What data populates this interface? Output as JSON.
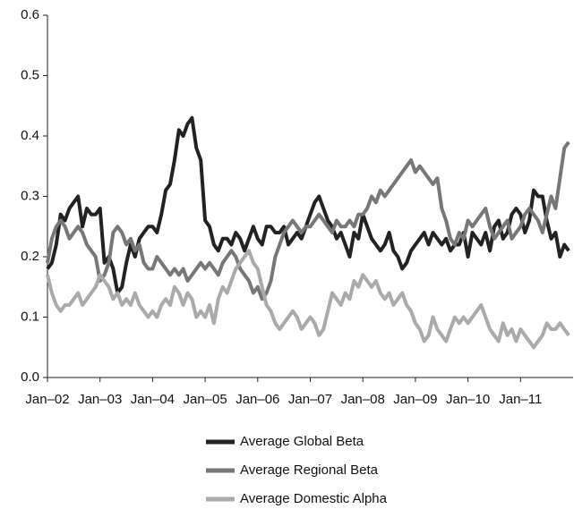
{
  "chart_data": {
    "type": "line",
    "categories": [
      "Jan–02",
      null,
      null,
      null,
      null,
      null,
      null,
      null,
      null,
      null,
      null,
      null,
      "Jan–03",
      null,
      null,
      null,
      null,
      null,
      null,
      null,
      null,
      null,
      null,
      null,
      "Jan–04",
      null,
      null,
      null,
      null,
      null,
      null,
      null,
      null,
      null,
      null,
      null,
      "Jan–05",
      null,
      null,
      null,
      null,
      null,
      null,
      null,
      null,
      null,
      null,
      null,
      "Jan–06",
      null,
      null,
      null,
      null,
      null,
      null,
      null,
      null,
      null,
      null,
      null,
      "Jan–07",
      null,
      null,
      null,
      null,
      null,
      null,
      null,
      null,
      null,
      null,
      null,
      "Jan–08",
      null,
      null,
      null,
      null,
      null,
      null,
      null,
      null,
      null,
      null,
      null,
      "Jan–09",
      null,
      null,
      null,
      null,
      null,
      null,
      null,
      null,
      null,
      null,
      null,
      "Jan–10",
      null,
      null,
      null,
      null,
      null,
      null,
      null,
      null,
      null,
      null,
      null,
      "Jan–11",
      null,
      null,
      null,
      null,
      null,
      null,
      null,
      null,
      null,
      null,
      null
    ],
    "series": [
      {
        "name": "Average Global Beta",
        "color": "#222222",
        "values": [
          0.18,
          0.19,
          0.22,
          0.27,
          0.26,
          0.28,
          0.29,
          0.3,
          0.25,
          0.28,
          0.27,
          0.27,
          0.28,
          0.19,
          0.2,
          0.18,
          0.14,
          0.15,
          0.19,
          0.22,
          0.2,
          0.23,
          0.24,
          0.25,
          0.25,
          0.24,
          0.27,
          0.31,
          0.32,
          0.36,
          0.41,
          0.4,
          0.42,
          0.43,
          0.38,
          0.36,
          0.26,
          0.25,
          0.22,
          0.21,
          0.23,
          0.23,
          0.22,
          0.24,
          0.23,
          0.21,
          0.23,
          0.25,
          0.23,
          0.22,
          0.25,
          0.25,
          0.24,
          0.24,
          0.25,
          0.22,
          0.23,
          0.24,
          0.23,
          0.25,
          0.27,
          0.29,
          0.3,
          0.28,
          0.26,
          0.25,
          0.23,
          0.24,
          0.22,
          0.2,
          0.24,
          0.23,
          0.27,
          0.25,
          0.23,
          0.22,
          0.21,
          0.22,
          0.24,
          0.21,
          0.2,
          0.18,
          0.19,
          0.21,
          0.22,
          0.23,
          0.24,
          0.22,
          0.24,
          0.23,
          0.22,
          0.23,
          0.21,
          0.22,
          0.22,
          0.24,
          0.2,
          0.24,
          0.23,
          0.22,
          0.24,
          0.21,
          0.25,
          0.26,
          0.23,
          0.24,
          0.27,
          0.28,
          0.27,
          0.24,
          0.26,
          0.31,
          0.3,
          0.3,
          0.26,
          0.23,
          0.24,
          0.2,
          0.22,
          0.21
        ]
      },
      {
        "name": "Average Regional Beta",
        "color": "#777777",
        "values": [
          0.19,
          0.23,
          0.25,
          0.26,
          0.25,
          0.23,
          0.24,
          0.25,
          0.24,
          0.22,
          0.21,
          0.2,
          0.16,
          0.17,
          0.19,
          0.24,
          0.25,
          0.24,
          0.22,
          0.23,
          0.21,
          0.22,
          0.19,
          0.18,
          0.18,
          0.2,
          0.19,
          0.18,
          0.17,
          0.18,
          0.17,
          0.18,
          0.16,
          0.17,
          0.18,
          0.19,
          0.18,
          0.19,
          0.18,
          0.17,
          0.19,
          0.2,
          0.21,
          0.2,
          0.18,
          0.17,
          0.16,
          0.14,
          0.15,
          0.13,
          0.14,
          0.16,
          0.2,
          0.22,
          0.24,
          0.25,
          0.26,
          0.25,
          0.24,
          0.25,
          0.25,
          0.26,
          0.27,
          0.26,
          0.25,
          0.24,
          0.26,
          0.25,
          0.25,
          0.26,
          0.25,
          0.27,
          0.27,
          0.28,
          0.3,
          0.29,
          0.31,
          0.3,
          0.31,
          0.32,
          0.33,
          0.34,
          0.35,
          0.36,
          0.34,
          0.35,
          0.34,
          0.33,
          0.32,
          0.33,
          0.28,
          0.26,
          0.23,
          0.22,
          0.24,
          0.23,
          0.26,
          0.25,
          0.26,
          0.27,
          0.28,
          0.25,
          0.23,
          0.24,
          0.25,
          0.26,
          0.23,
          0.24,
          0.25,
          0.27,
          0.28,
          0.27,
          0.26,
          0.24,
          0.27,
          0.3,
          0.28,
          0.33,
          0.38,
          0.39
        ]
      },
      {
        "name": "Average Domestic Alpha",
        "color": "#aaaaaa",
        "values": [
          0.17,
          0.14,
          0.12,
          0.11,
          0.12,
          0.12,
          0.13,
          0.14,
          0.12,
          0.13,
          0.14,
          0.15,
          0.17,
          0.16,
          0.15,
          0.13,
          0.14,
          0.12,
          0.13,
          0.12,
          0.14,
          0.12,
          0.11,
          0.1,
          0.11,
          0.1,
          0.12,
          0.13,
          0.12,
          0.15,
          0.14,
          0.12,
          0.14,
          0.13,
          0.1,
          0.11,
          0.1,
          0.12,
          0.09,
          0.13,
          0.15,
          0.14,
          0.16,
          0.18,
          0.19,
          0.2,
          0.21,
          0.19,
          0.18,
          0.15,
          0.12,
          0.11,
          0.09,
          0.08,
          0.09,
          0.1,
          0.11,
          0.1,
          0.08,
          0.09,
          0.1,
          0.09,
          0.07,
          0.08,
          0.11,
          0.14,
          0.13,
          0.12,
          0.14,
          0.13,
          0.16,
          0.15,
          0.17,
          0.16,
          0.15,
          0.16,
          0.14,
          0.13,
          0.14,
          0.12,
          0.13,
          0.14,
          0.12,
          0.11,
          0.09,
          0.08,
          0.06,
          0.07,
          0.1,
          0.08,
          0.07,
          0.06,
          0.08,
          0.1,
          0.09,
          0.1,
          0.09,
          0.1,
          0.11,
          0.12,
          0.1,
          0.08,
          0.07,
          0.06,
          0.09,
          0.07,
          0.08,
          0.06,
          0.08,
          0.07,
          0.06,
          0.05,
          0.06,
          0.07,
          0.09,
          0.08,
          0.08,
          0.09,
          0.08,
          0.07
        ]
      }
    ],
    "ylim": [
      0,
      0.6
    ],
    "yticks": [
      {
        "value": 0,
        "label": "0.0"
      },
      0.1,
      0.2,
      0.3,
      0.4,
      0.5,
      0.6
    ],
    "grid": false,
    "legend": "bottom"
  }
}
